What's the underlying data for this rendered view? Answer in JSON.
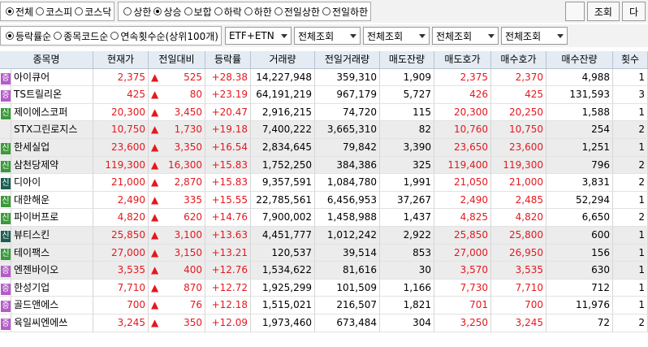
{
  "filters": {
    "market": {
      "options": [
        "전체",
        "코스피",
        "코스닥"
      ],
      "selected": 0
    },
    "condition": {
      "options": [
        "상한",
        "상승",
        "보합",
        "하락",
        "하한",
        "전일상한",
        "전일하한"
      ],
      "selected": 1
    },
    "buttons": [
      "조회",
      "다"
    ],
    "sort": {
      "options": [
        "등락률순",
        "종목코드순",
        "연속횟수순(상위100개)"
      ],
      "selected": 0
    },
    "dropdowns": [
      "ETF+ETN",
      "전체조회",
      "전체조회",
      "전체조회",
      "전체조회"
    ]
  },
  "table": {
    "headers": [
      "종목명",
      "현재가",
      "전일대비",
      "등락률",
      "거래량",
      "전일거래량",
      "매도잔량",
      "매도호가",
      "매수호가",
      "매수잔량",
      "횟수"
    ],
    "rows": [
      {
        "badge": "증",
        "badge_color": "#b45cc8",
        "cells": [
          "아이큐어",
          "2,375",
          "▲",
          "525",
          "+28.38",
          "14,227,948",
          "359,310",
          "1,909",
          "2,375",
          "2,370",
          "4,988",
          "1"
        ]
      },
      {
        "badge": "증",
        "badge_color": "#b45cc8",
        "cells": [
          "TS트릴리온",
          "425",
          "▲",
          "80",
          "+23.19",
          "64,191,219",
          "967,179",
          "5,727",
          "426",
          "425",
          "131,593",
          "3"
        ]
      },
      {
        "badge": "신",
        "badge_color": "#3a9a3a",
        "cells": [
          "제이에스코퍼",
          "20,300",
          "▲",
          "3,450",
          "+20.47",
          "2,916,215",
          "74,720",
          "115",
          "20,300",
          "20,250",
          "1,588",
          "1"
        ]
      },
      {
        "badge": null,
        "badge_color": null,
        "cells": [
          "STX그린로지스",
          "10,750",
          "▲",
          "1,730",
          "+19.18",
          "7,400,222",
          "3,665,310",
          "82",
          "10,760",
          "10,750",
          "254",
          "2"
        ]
      },
      {
        "badge": "신",
        "badge_color": "#3a9a3a",
        "cells": [
          "한세실업",
          "23,600",
          "▲",
          "3,350",
          "+16.54",
          "2,834,645",
          "79,842",
          "3,390",
          "23,650",
          "23,600",
          "1,251",
          "1"
        ]
      },
      {
        "badge": "신",
        "badge_color": "#3a9a3a",
        "cells": [
          "삼천당제약",
          "119,300",
          "▲",
          "16,300",
          "+15.83",
          "1,752,250",
          "384,386",
          "325",
          "119,400",
          "119,300",
          "796",
          "2"
        ]
      },
      {
        "badge": "신",
        "badge_color": "#1b5e52",
        "cells": [
          "디아이",
          "21,000",
          "▲",
          "2,870",
          "+15.83",
          "9,357,591",
          "1,084,780",
          "1,991",
          "21,050",
          "21,000",
          "3,831",
          "2"
        ]
      },
      {
        "badge": "신",
        "badge_color": "#3a9a3a",
        "cells": [
          "대한해운",
          "2,490",
          "▲",
          "335",
          "+15.55",
          "22,785,561",
          "6,456,953",
          "37,267",
          "2,490",
          "2,485",
          "52,294",
          "1"
        ]
      },
      {
        "badge": "신",
        "badge_color": "#3a9a3a",
        "cells": [
          "파이버프로",
          "4,820",
          "▲",
          "620",
          "+14.76",
          "7,900,002",
          "1,458,988",
          "1,437",
          "4,825",
          "4,820",
          "6,650",
          "2"
        ]
      },
      {
        "badge": "신",
        "badge_color": "#1b5e52",
        "cells": [
          "뷰티스킨",
          "25,850",
          "▲",
          "3,100",
          "+13.63",
          "4,451,777",
          "1,012,242",
          "2,922",
          "25,850",
          "25,800",
          "600",
          "1"
        ]
      },
      {
        "badge": "신",
        "badge_color": "#3a9a3a",
        "cells": [
          "테이팩스",
          "27,000",
          "▲",
          "3,150",
          "+13.21",
          "120,537",
          "39,514",
          "853",
          "27,000",
          "26,950",
          "156",
          "1"
        ]
      },
      {
        "badge": "증",
        "badge_color": "#b45cc8",
        "cells": [
          "엔젠바이오",
          "3,535",
          "▲",
          "400",
          "+12.76",
          "1,534,622",
          "81,616",
          "30",
          "3,570",
          "3,535",
          "630",
          "1"
        ]
      },
      {
        "badge": "증",
        "badge_color": "#b45cc8",
        "cells": [
          "한성기업",
          "7,710",
          "▲",
          "870",
          "+12.72",
          "1,925,299",
          "101,509",
          "1,166",
          "7,730",
          "7,710",
          "712",
          "1"
        ]
      },
      {
        "badge": "증",
        "badge_color": "#b45cc8",
        "cells": [
          "골드앤에스",
          "700",
          "▲",
          "76",
          "+12.18",
          "1,515,021",
          "216,507",
          "1,821",
          "701",
          "700",
          "11,976",
          "1"
        ]
      },
      {
        "badge": "증",
        "badge_color": "#b45cc8",
        "cells": [
          "육일씨엔에쓰",
          "3,245",
          "▲",
          "350",
          "+12.09",
          "1,973,460",
          "673,484",
          "304",
          "3,250",
          "3,245",
          "72",
          "2"
        ]
      }
    ]
  }
}
